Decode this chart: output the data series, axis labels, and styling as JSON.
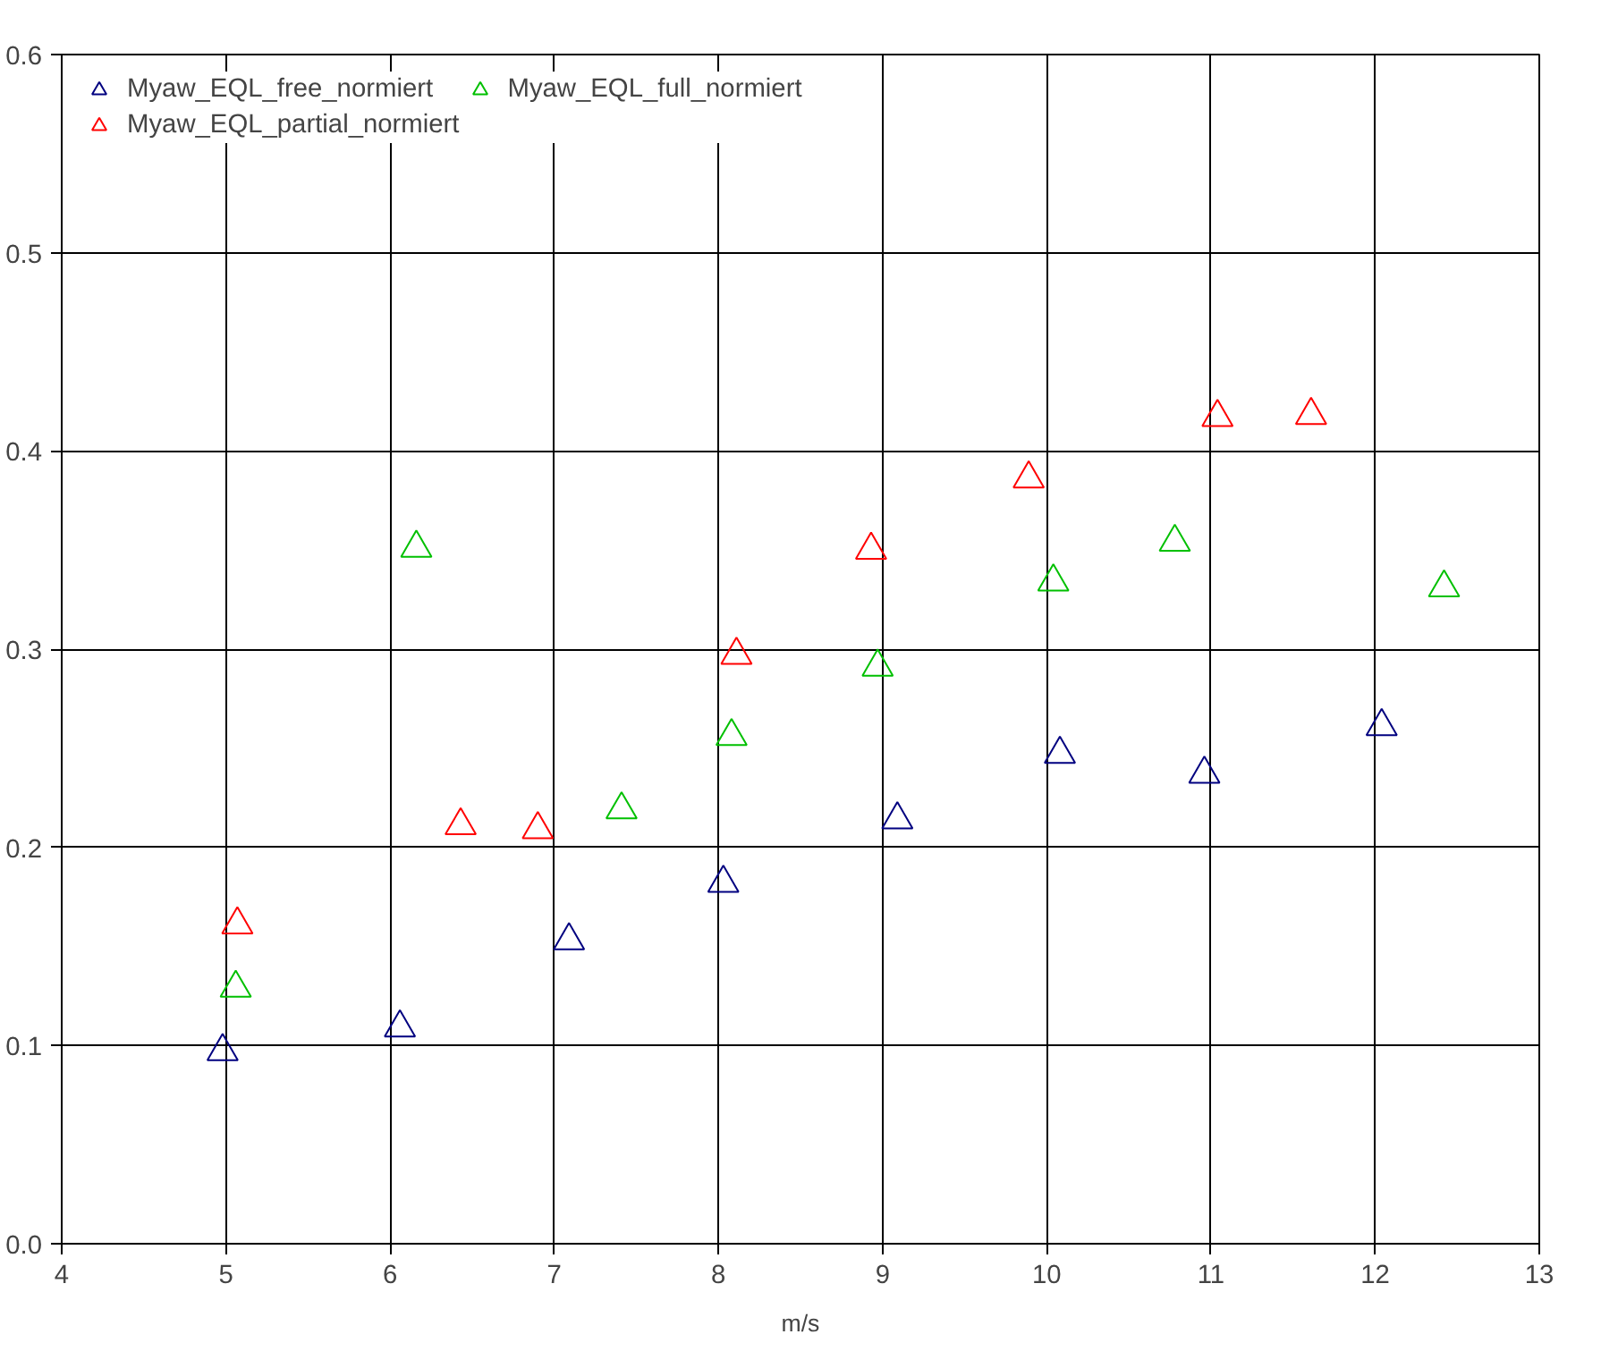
{
  "chart_data": {
    "type": "scatter",
    "xlabel": "m/s",
    "marker": "triangle",
    "grid": true,
    "legend": "top left",
    "xlim": [
      4,
      13
    ],
    "xticks": [
      4,
      5,
      6,
      7,
      8,
      9,
      10,
      11,
      12,
      13
    ],
    "ylim": [
      0,
      0.6
    ],
    "yticks": [
      {
        "value": 0,
        "label": "0.0"
      },
      0.1,
      0.2,
      0.3,
      0.4,
      0.5,
      0.6
    ],
    "series": [
      {
        "name": "Myaw_EQL_free_normiert",
        "color": "#000080",
        "x": [
          4.98,
          6.06,
          7.09,
          8.03,
          9.09,
          10.08,
          10.96,
          12.04
        ],
        "values": [
          0.097,
          0.109,
          0.153,
          0.182,
          0.214,
          0.247,
          0.237,
          0.261
        ]
      },
      {
        "name": "Myaw_EQL_partial_normiert",
        "color": "#ff0000",
        "x": [
          5.07,
          6.43,
          6.9,
          8.11,
          8.93,
          9.89,
          11.04,
          11.61
        ],
        "values": [
          0.161,
          0.211,
          0.209,
          0.297,
          0.35,
          0.386,
          0.417,
          0.418
        ]
      },
      {
        "name": "Myaw_EQL_full_normiert",
        "color": "#00c000",
        "x": [
          5.06,
          6.16,
          7.41,
          8.08,
          8.97,
          10.04,
          10.78,
          12.42
        ],
        "values": [
          0.129,
          0.351,
          0.219,
          0.256,
          0.291,
          0.334,
          0.354,
          0.331
        ]
      }
    ]
  }
}
